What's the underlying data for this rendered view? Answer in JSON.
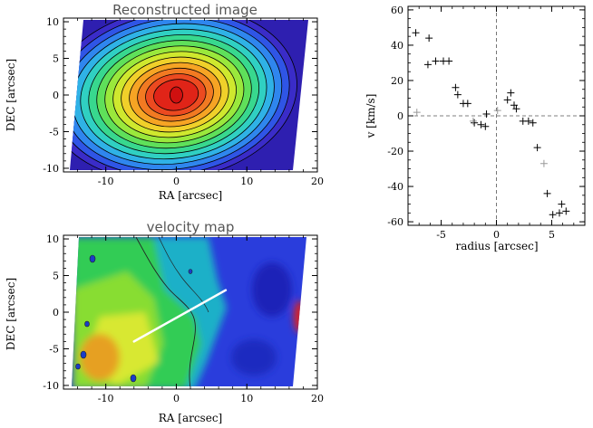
{
  "chart_data": [
    {
      "type": "heatmap",
      "title": "Reconstructed image",
      "xlabel": "RA [arcsec]",
      "ylabel": "DEC [arcsec]",
      "xlim": [
        -16,
        20
      ],
      "ylim": [
        -10.5,
        10.5
      ],
      "xticks": [
        "-10",
        "0",
        "10",
        "20"
      ],
      "yticks": [
        "10",
        "5",
        "0",
        "-5",
        "-10"
      ],
      "peak": [
        0,
        0
      ],
      "contour_levels": 14
    },
    {
      "type": "heatmap",
      "title": "velocity map",
      "xlabel": "RA [arcsec]",
      "ylabel": "DEC [arcsec]",
      "xlim": [
        -16,
        20
      ],
      "ylim": [
        -10.5,
        10.5
      ],
      "xticks": [
        "-10",
        "0",
        "10",
        "20"
      ],
      "yticks": [
        "10",
        "5",
        "0",
        "-5",
        "-10"
      ],
      "slit": [
        [
          -6,
          -4
        ],
        [
          7,
          3
        ]
      ]
    },
    {
      "type": "scatter",
      "xlabel": "radius [arcsec]",
      "ylabel": "v [km/s]",
      "xlim": [
        -8,
        8
      ],
      "ylim": [
        -62,
        62
      ],
      "xticks": [
        "-5",
        "0",
        "5"
      ],
      "yticks": [
        "60",
        "40",
        "20",
        "0",
        "-20",
        "-40",
        "-60"
      ],
      "grid": false,
      "points": [
        {
          "x": -7.3,
          "y": 47
        },
        {
          "x": -6.1,
          "y": 44
        },
        {
          "x": -5.5,
          "y": 31
        },
        {
          "x": -6.2,
          "y": 29
        },
        {
          "x": -4.8,
          "y": 31
        },
        {
          "x": -4.3,
          "y": 31
        },
        {
          "x": -3.7,
          "y": 16
        },
        {
          "x": -3.5,
          "y": 12
        },
        {
          "x": -3.0,
          "y": 7
        },
        {
          "x": -2.6,
          "y": 7
        },
        {
          "x": -2.0,
          "y": -4
        },
        {
          "x": -1.4,
          "y": -5
        },
        {
          "x": -1.0,
          "y": -6
        },
        {
          "x": -0.9,
          "y": 1
        },
        {
          "x": 1.3,
          "y": 13
        },
        {
          "x": 1.0,
          "y": 9
        },
        {
          "x": 1.8,
          "y": 4
        },
        {
          "x": 1.6,
          "y": 6
        },
        {
          "x": 2.4,
          "y": -3
        },
        {
          "x": 2.9,
          "y": -3
        },
        {
          "x": 3.3,
          "y": -4
        },
        {
          "x": 3.7,
          "y": -18
        },
        {
          "x": 4.6,
          "y": -44
        },
        {
          "x": 5.1,
          "y": -56
        },
        {
          "x": 5.7,
          "y": -55
        },
        {
          "x": 5.9,
          "y": -50
        },
        {
          "x": 6.3,
          "y": -54
        }
      ],
      "faint_points": [
        {
          "x": -7.2,
          "y": 2
        },
        {
          "x": -2.1,
          "y": -3
        },
        {
          "x": 0.1,
          "y": 3
        },
        {
          "x": 4.3,
          "y": -27
        }
      ]
    }
  ]
}
